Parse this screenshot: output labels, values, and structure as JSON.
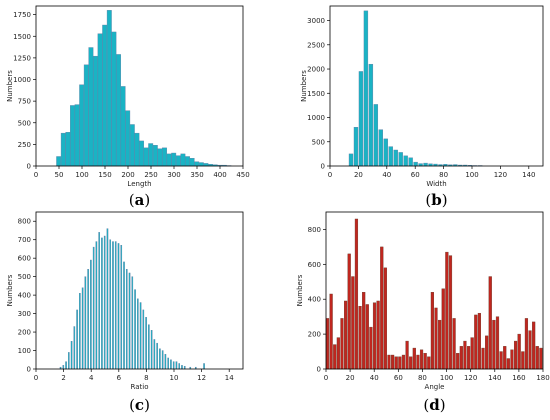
{
  "colors": {
    "bar_default": "#1ab3c4",
    "bar_edge": "#5f7fa6",
    "bar_red": "#c0261f",
    "bar_red_edge": "#6b3a2a",
    "axis": "#000000"
  },
  "chart_data": [
    {
      "type": "bar",
      "panel": "a",
      "caption_open": "(",
      "caption_letter": "a",
      "caption_close": ")",
      "xlabel": "Length",
      "ylabel": "Numbers",
      "xlim": [
        0,
        450
      ],
      "ylim": [
        0,
        1850
      ],
      "xticks": [
        0,
        50,
        100,
        150,
        200,
        250,
        300,
        350,
        400,
        450
      ],
      "yticks": [
        0,
        250,
        500,
        750,
        1000,
        1250,
        1500,
        1750
      ],
      "bin_width": 11,
      "bar_color": "#1ab3c4",
      "x": [
        50,
        60,
        70,
        80,
        90,
        100,
        110,
        120,
        130,
        140,
        150,
        160,
        170,
        180,
        190,
        200,
        210,
        220,
        230,
        240,
        250,
        260,
        270,
        280,
        290,
        300,
        310,
        320,
        330,
        340,
        350,
        360,
        370,
        380,
        390,
        400,
        410,
        420
      ],
      "values": [
        110,
        380,
        390,
        700,
        710,
        940,
        1170,
        1370,
        1270,
        1530,
        1630,
        1800,
        1550,
        1290,
        920,
        640,
        480,
        380,
        290,
        210,
        260,
        240,
        200,
        210,
        140,
        150,
        120,
        140,
        110,
        90,
        50,
        40,
        30,
        20,
        15,
        10,
        10,
        5
      ]
    },
    {
      "type": "bar",
      "panel": "b",
      "caption_open": "(",
      "caption_letter": "b",
      "caption_close": ")",
      "xlabel": "Width",
      "ylabel": "Numbers",
      "xlim": [
        0,
        150
      ],
      "ylim": [
        0,
        3300
      ],
      "xticks": [
        0,
        20,
        40,
        60,
        80,
        100,
        120,
        140
      ],
      "yticks": [
        0,
        500,
        1000,
        1500,
        2000,
        2500,
        3000
      ],
      "bin_width": 3.2,
      "bar_color": "#1ab3c4",
      "x": [
        15,
        18.5,
        22,
        25.5,
        29,
        32.5,
        36,
        39.5,
        43,
        46.5,
        50,
        53.5,
        57,
        60.5,
        64,
        67.5,
        71,
        74.5,
        78,
        81.5,
        85,
        88.5,
        92,
        95.5,
        99,
        102.5,
        106
      ],
      "values": [
        250,
        800,
        1950,
        3200,
        2100,
        1270,
        750,
        560,
        400,
        330,
        280,
        210,
        170,
        80,
        50,
        60,
        45,
        40,
        30,
        35,
        25,
        30,
        20,
        20,
        15,
        10,
        10
      ]
    },
    {
      "type": "bar",
      "panel": "c",
      "caption_open": "(",
      "caption_letter": "c",
      "caption_close": ")",
      "xlabel": "Ratio",
      "ylabel": "Numbers",
      "xlim": [
        0,
        15
      ],
      "ylim": [
        0,
        850
      ],
      "xticks": [
        0,
        2,
        4,
        6,
        8,
        10,
        12,
        14
      ],
      "yticks": [
        0,
        100,
        200,
        300,
        400,
        500,
        600,
        700,
        800
      ],
      "bin_width": 0.13,
      "bar_color": "#1ab3c4",
      "x": [
        1.8,
        2.0,
        2.2,
        2.4,
        2.6,
        2.8,
        3.0,
        3.2,
        3.4,
        3.6,
        3.8,
        4.0,
        4.2,
        4.4,
        4.6,
        4.8,
        5.0,
        5.2,
        5.4,
        5.6,
        5.8,
        6.0,
        6.2,
        6.4,
        6.6,
        6.8,
        7.0,
        7.2,
        7.4,
        7.6,
        7.8,
        8.0,
        8.2,
        8.4,
        8.6,
        8.8,
        9.0,
        9.2,
        9.4,
        9.6,
        9.8,
        10.0,
        10.2,
        10.4,
        10.6,
        10.8,
        11.2,
        11.6,
        12.2
      ],
      "values": [
        10,
        20,
        40,
        90,
        150,
        230,
        320,
        410,
        440,
        500,
        540,
        590,
        660,
        690,
        740,
        710,
        720,
        760,
        700,
        690,
        690,
        680,
        670,
        580,
        540,
        520,
        500,
        430,
        380,
        360,
        320,
        280,
        240,
        210,
        160,
        140,
        110,
        100,
        80,
        60,
        50,
        40,
        40,
        30,
        20,
        15,
        10,
        10,
        30
      ]
    },
    {
      "type": "bar",
      "panel": "d",
      "caption_open": "(",
      "caption_letter": "d",
      "caption_close": ")",
      "xlabel": "Angle",
      "ylabel": "Numbers",
      "xlim": [
        0,
        180
      ],
      "ylim": [
        0,
        900
      ],
      "xticks": [
        0,
        20,
        40,
        60,
        80,
        100,
        120,
        140,
        160,
        180
      ],
      "yticks": [
        0,
        200,
        400,
        600,
        800
      ],
      "bin_width": 2.8,
      "bar_color": "#c0261f",
      "x": [
        1.5,
        4.5,
        7.5,
        10.5,
        13.5,
        16.5,
        19.5,
        22.5,
        25.5,
        28.5,
        31.5,
        34.5,
        37.5,
        40.5,
        43.5,
        46.5,
        49.5,
        52.5,
        55.5,
        58.5,
        61.5,
        64.5,
        67.5,
        70.5,
        73.5,
        76.5,
        79.5,
        82.5,
        85.5,
        88.5,
        91.5,
        94.5,
        97.5,
        100.5,
        103.5,
        106.5,
        109.5,
        112.5,
        115.5,
        118.5,
        121.5,
        124.5,
        127.5,
        130.5,
        133.5,
        136.5,
        139.5,
        142.5,
        145.5,
        148.5,
        151.5,
        154.5,
        157.5,
        160.5,
        163.5,
        166.5,
        169.5,
        172.5,
        175.5,
        178.5
      ],
      "values": [
        290,
        430,
        140,
        180,
        290,
        390,
        660,
        530,
        860,
        360,
        440,
        370,
        240,
        380,
        390,
        700,
        580,
        80,
        80,
        70,
        70,
        80,
        160,
        70,
        120,
        80,
        110,
        90,
        70,
        440,
        350,
        280,
        460,
        670,
        650,
        290,
        90,
        130,
        160,
        130,
        180,
        310,
        320,
        120,
        190,
        530,
        280,
        300,
        100,
        130,
        60,
        110,
        160,
        200,
        100,
        290,
        220,
        270,
        130,
        120
      ]
    }
  ]
}
